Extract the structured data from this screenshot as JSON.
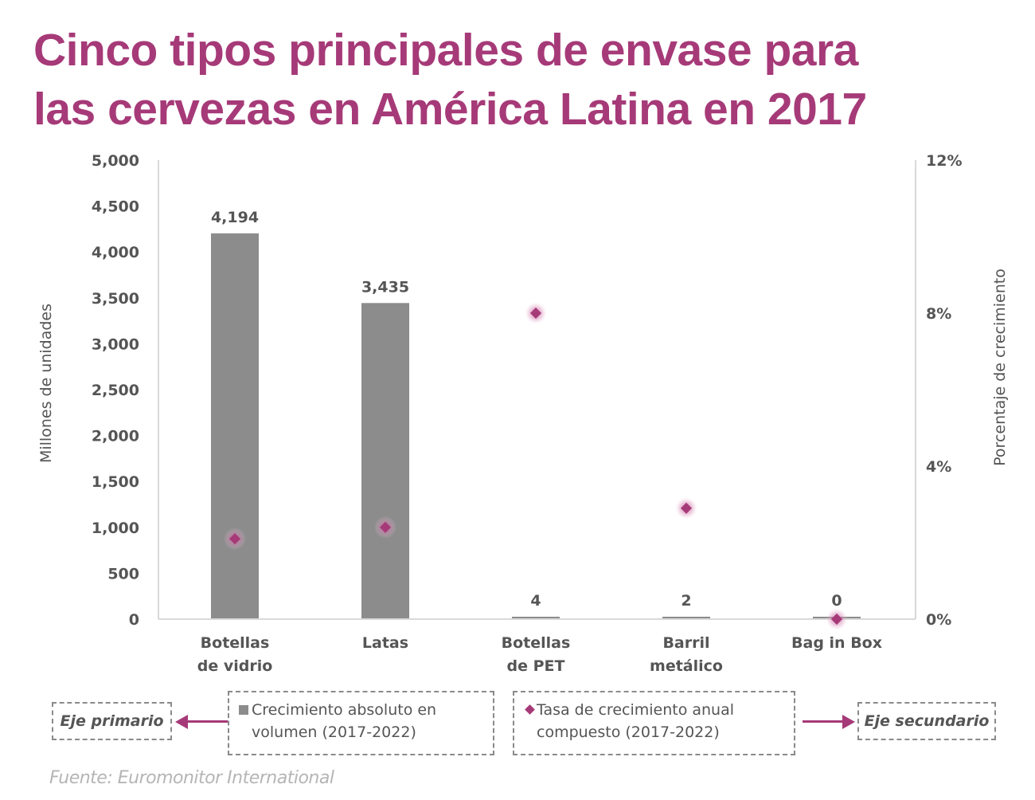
{
  "title_lines": [
    "Cinco tipos principales de envase para",
    "las cervezas en América Latina en 2017"
  ],
  "colors": {
    "title": "#a63a78",
    "bar": "#8c8c8c",
    "marker": "#a63a78",
    "text": "#555555",
    "axis_line": "#d9d9d9",
    "source": "#b5b5b5"
  },
  "legend": {
    "primary_axis_tag": "Eje primario",
    "secondary_axis_tag": "Eje secundario",
    "bar_series_line1": "Crecimiento absoluto en",
    "bar_series_line2": "volumen (2017-2022)",
    "marker_series_line1": "Tasa de crecimiento anual",
    "marker_series_line2": "compuesto (2017-2022)",
    "bar_icon": "square-swatch-icon",
    "marker_icon": "diamond-swatch-icon",
    "arrow_icon": "arrow-icon"
  },
  "source": "Fuente: Euromonitor International",
  "chart_data": {
    "type": "bar",
    "title": "Cinco tipos principales de envase para las cervezas en América Latina en 2017",
    "categories": [
      [
        "Botellas",
        "de vidrio"
      ],
      [
        "Latas"
      ],
      [
        "Botellas",
        "de PET"
      ],
      [
        "Barril",
        "metálico"
      ],
      [
        "Bag in Box"
      ]
    ],
    "series": [
      {
        "name": "Crecimiento absoluto en volumen (2017-2022)",
        "type": "bar",
        "axis": "primary",
        "values": [
          4194,
          3435,
          4,
          2,
          0
        ],
        "labels": [
          "4,194",
          "3,435",
          "4",
          "2",
          "0"
        ]
      },
      {
        "name": "Tasa de crecimiento anual compuesto (2017-2022)",
        "type": "scatter",
        "marker": "diamond",
        "axis": "secondary",
        "values": [
          2.1,
          2.4,
          8.0,
          2.9,
          0.0
        ]
      }
    ],
    "ylabel": "Millones de unidades",
    "y2label": "Porcentaje de crecimiento",
    "ylim": [
      0,
      5000
    ],
    "yticks": [
      0,
      500,
      1000,
      1500,
      2000,
      2500,
      3000,
      3500,
      4000,
      4500,
      5000
    ],
    "ytick_labels": [
      "0",
      "500",
      "1,000",
      "1,500",
      "2,000",
      "2,500",
      "3,000",
      "3,500",
      "4,000",
      "4,500",
      "5,000"
    ],
    "y2lim": [
      0,
      12
    ],
    "y2ticks": [
      0,
      4,
      8,
      12
    ],
    "y2tick_labels": [
      "0%",
      "4%",
      "8%",
      "12%"
    ],
    "grid": false,
    "legend_position": "bottom"
  }
}
